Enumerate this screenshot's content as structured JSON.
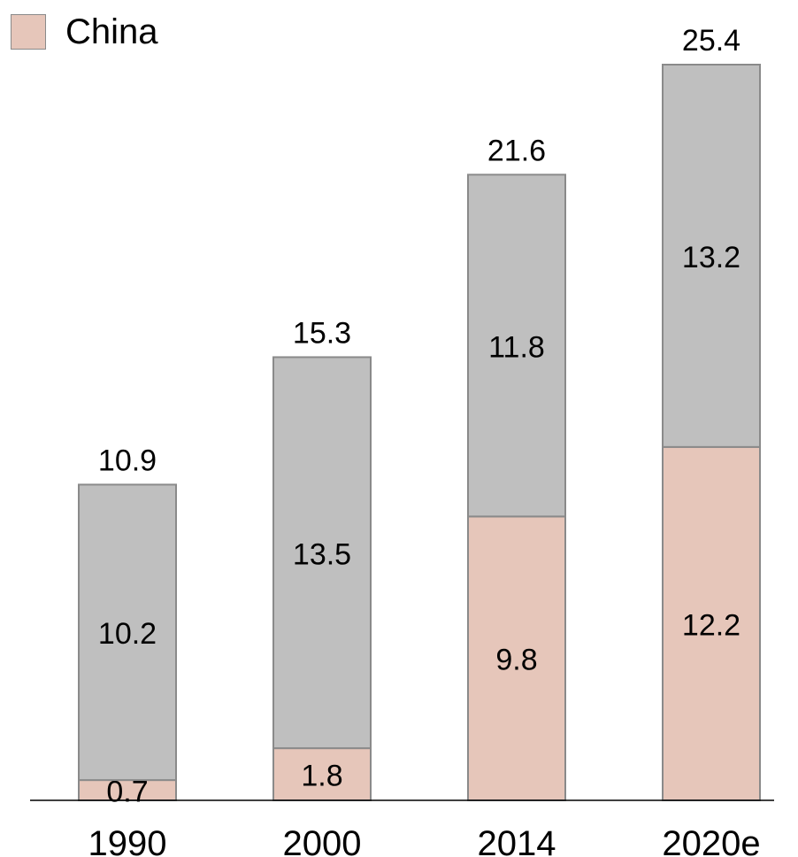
{
  "chart_data": {
    "type": "bar",
    "stacked": true,
    "categories": [
      "1990",
      "2000",
      "2014",
      "2020e"
    ],
    "series": [
      {
        "name": "China",
        "values": [
          0.7,
          1.8,
          9.8,
          12.2
        ],
        "color": "#E6C6BA"
      },
      {
        "name": "",
        "values": [
          10.2,
          13.5,
          11.8,
          13.2
        ],
        "color": "#BFBFBF"
      }
    ],
    "totals": [
      "10.9",
      "15.3",
      "21.6",
      "25.4"
    ],
    "segment_labels": [
      [
        "0.7",
        "10.2"
      ],
      [
        "1.8",
        "13.5"
      ],
      [
        "9.8",
        "11.8"
      ],
      [
        "12.2",
        "13.2"
      ]
    ],
    "legend": {
      "position": "top-left",
      "entries": [
        "China"
      ]
    },
    "ylim": [
      0,
      25.4
    ],
    "grid": false
  },
  "colors": {
    "china": "#E6C6BA",
    "other": "#BFBFBF",
    "outline": "#8a8a8a",
    "axis": "#000000"
  }
}
